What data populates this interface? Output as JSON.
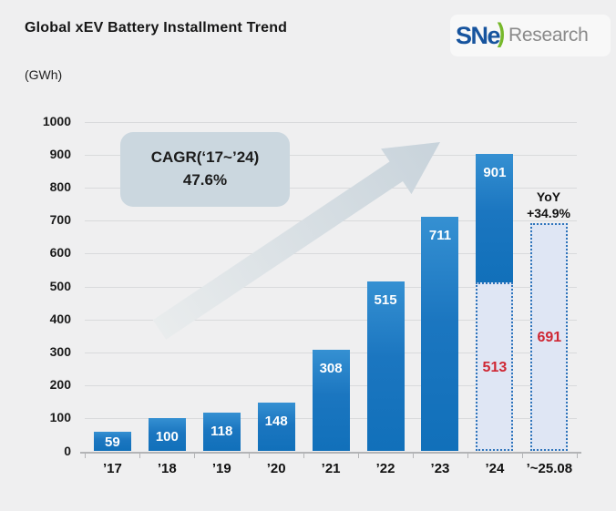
{
  "header": {
    "title": "Global xEV Battery Installment Trend",
    "unit_label": "(GWh)",
    "logo": {
      "sne": "SNe",
      "swoosh_glyph": ")",
      "research": "Research",
      "sne_color": "#17549e",
      "swoosh_color": "#76b82a",
      "research_color": "#8a8a8a"
    }
  },
  "chart_data": {
    "type": "bar",
    "title": "Global xEV Battery Installment Trend",
    "ylabel": "(GWh)",
    "ylim": [
      0,
      1000
    ],
    "ytick_step": 100,
    "grid": true,
    "categories": [
      "’17",
      "’18",
      "’19",
      "’20",
      "’21",
      "’22",
      "’23",
      "’24",
      "’~25.08"
    ],
    "series": [
      {
        "name": "Global xEV battery installment (GWh)",
        "values": [
          59,
          100,
          118,
          148,
          308,
          515,
          711,
          901,
          691
        ]
      }
    ],
    "bars": [
      {
        "category": "’17",
        "value": 59,
        "style": "solid",
        "label": "59"
      },
      {
        "category": "’18",
        "value": 100,
        "style": "solid",
        "label": "100"
      },
      {
        "category": "’19",
        "value": 118,
        "style": "solid",
        "label": "118"
      },
      {
        "category": "’20",
        "value": 148,
        "style": "solid",
        "label": "148"
      },
      {
        "category": "’21",
        "value": 308,
        "style": "solid",
        "label": "308"
      },
      {
        "category": "’22",
        "value": 515,
        "style": "solid",
        "label": "515"
      },
      {
        "category": "’23",
        "value": 711,
        "style": "solid",
        "label": "711"
      },
      {
        "category": "’24",
        "value": 901,
        "style": "solid",
        "label": "901",
        "overlay": {
          "value": 513,
          "label": "513",
          "style": "dashed"
        }
      },
      {
        "category": "’~25.08",
        "value": 691,
        "style": "dashed",
        "label": "691"
      }
    ],
    "annotations": {
      "cagr_line1": "CAGR(‘17~’24)",
      "cagr_line2": "47.6%",
      "yoy_line1": "YoY",
      "yoy_line2": "+34.9%"
    },
    "colors": {
      "bar_top": "#3590d2",
      "bar_bottom": "#1170ba",
      "dashed_fill": "#dfe6f4",
      "dashed_border": "#2e74bb",
      "value_label": "#ffffff",
      "overlay_label": "#cf2733",
      "gridline": "#d9dadc",
      "axis": "#b3b4b6",
      "background": "#efeff0",
      "cagr_box": "#cbd7df",
      "arrow": "#cbd6de"
    }
  }
}
